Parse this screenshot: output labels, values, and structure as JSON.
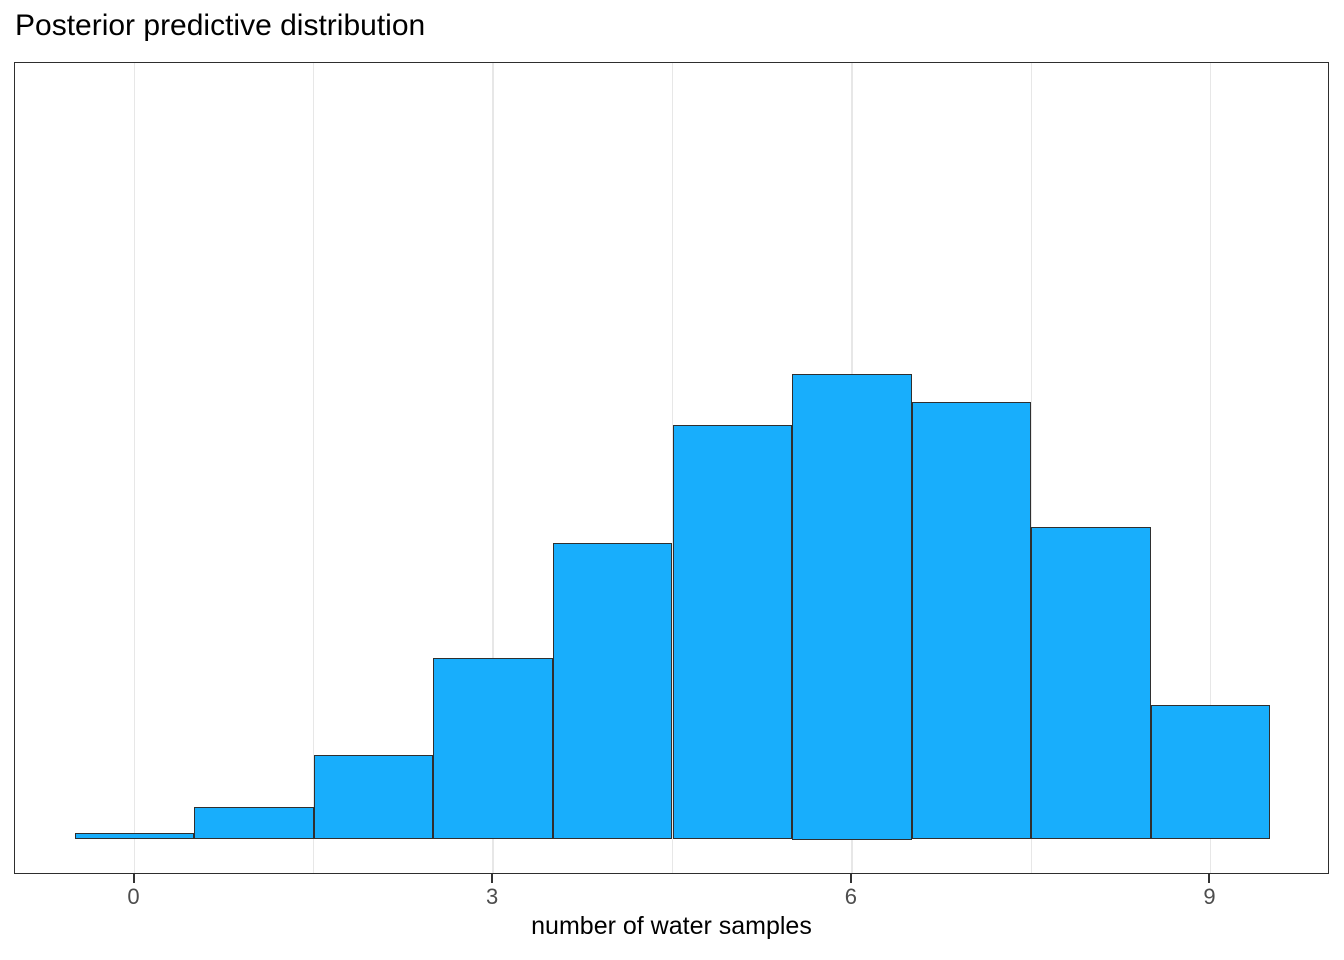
{
  "page": {
    "background": "#ffffff"
  },
  "chart_data": {
    "type": "bar",
    "subtype": "histogram",
    "title": "Posterior predictive distribution",
    "xlabel": "number of water samples",
    "ylabel": "",
    "categories": [
      0,
      1,
      2,
      3,
      4,
      5,
      6,
      7,
      8,
      9
    ],
    "values": [
      0.014,
      0.07,
      0.182,
      0.39,
      0.637,
      0.89,
      1.0,
      0.94,
      0.671,
      0.289
    ],
    "values_unit": "relative bar height (tallest bar = 1); y axis has no ticks or labels",
    "bar_width": 1,
    "xlim": [
      -1,
      10
    ],
    "x_ticks": [
      0,
      3,
      6,
      9
    ],
    "x_tick_labels": [
      "0",
      "3",
      "6",
      "9"
    ],
    "x_minor_gridlines": [
      1.5,
      4.5,
      7.5
    ],
    "grid": "vertical gridlines only, light gray, white panel background, dark panel border",
    "legend": "none",
    "colors": {
      "bar_fill": "#18AEFC",
      "bar_stroke": "#2f2f2f",
      "gridline": "#e7e7e7",
      "panel_border": "#2e2e2e",
      "tick": "#333333",
      "tick_label": "#4d4d4d",
      "title": "#000000",
      "axis_title": "#000000"
    }
  }
}
